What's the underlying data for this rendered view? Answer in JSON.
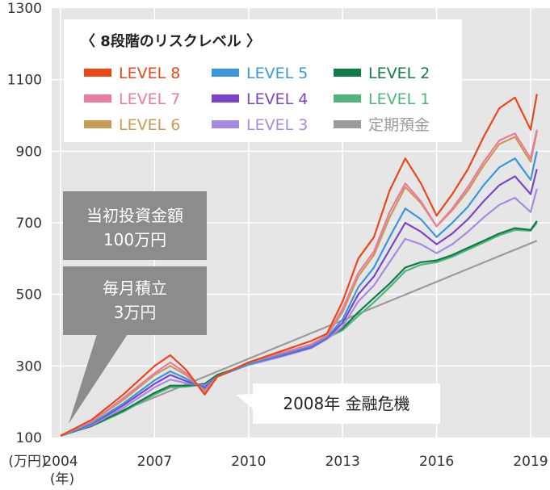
{
  "chart_data": {
    "type": "line",
    "xlabel": "(年)",
    "ylabel": "(万円)",
    "xlim": [
      2004,
      2019.5
    ],
    "ylim": [
      100,
      1300
    ],
    "x_ticks": [
      "2004",
      "2007",
      "2010",
      "2013",
      "2016",
      "2019"
    ],
    "y_ticks": [
      "100",
      "300",
      "500",
      "700",
      "900",
      "1100",
      "1300"
    ],
    "grid": true,
    "legend": {
      "title": "〈 8段階のリスクレベル 〉",
      "placement": "top-right"
    },
    "annotations": {
      "initial_investment": [
        "当初投資金額",
        "100万円"
      ],
      "monthly_investment": [
        "毎月積立",
        "3万円"
      ],
      "crisis": "2008年 金融危機"
    },
    "series": [
      {
        "name": "LEVEL 8",
        "color": "#e8471c",
        "x": [
          2004,
          2005,
          2006,
          2007,
          2007.5,
          2008,
          2008.6,
          2009,
          2010,
          2011,
          2012,
          2012.5,
          2013,
          2013.5,
          2014,
          2014.5,
          2015,
          2015.5,
          2016,
          2016.5,
          2017,
          2017.5,
          2018,
          2018.5,
          2019,
          2019.2
        ],
        "y": [
          105,
          150,
          220,
          300,
          330,
          290,
          220,
          270,
          310,
          340,
          370,
          390,
          480,
          600,
          660,
          790,
          880,
          810,
          720,
          780,
          850,
          940,
          1020,
          1050,
          960,
          1060
        ]
      },
      {
        "name": "LEVEL 7",
        "color": "#e97aa1",
        "x": [
          2004,
          2005,
          2006,
          2007,
          2007.5,
          2008,
          2008.6,
          2009,
          2010,
          2011,
          2012,
          2012.5,
          2013,
          2013.5,
          2014,
          2014.5,
          2015,
          2015.5,
          2016,
          2016.5,
          2017,
          2017.5,
          2018,
          2018.5,
          2019,
          2019.2
        ],
        "y": [
          105,
          145,
          210,
          280,
          310,
          280,
          225,
          270,
          310,
          335,
          360,
          385,
          460,
          560,
          620,
          730,
          810,
          760,
          690,
          740,
          800,
          870,
          930,
          950,
          880,
          960
        ]
      },
      {
        "name": "LEVEL 6",
        "color": "#c99a54",
        "x": [
          2004,
          2005,
          2006,
          2007,
          2007.5,
          2008,
          2008.6,
          2009,
          2010,
          2011,
          2012,
          2012.5,
          2013,
          2013.5,
          2014,
          2014.5,
          2015,
          2015.5,
          2016,
          2016.5,
          2017,
          2017.5,
          2018,
          2018.5,
          2019,
          2019.2
        ],
        "y": [
          105,
          145,
          205,
          275,
          300,
          275,
          230,
          270,
          310,
          335,
          360,
          385,
          450,
          550,
          610,
          715,
          800,
          755,
          690,
          735,
          790,
          860,
          920,
          940,
          870,
          955
        ]
      },
      {
        "name": "LEVEL 5",
        "color": "#3a97d9",
        "x": [
          2004,
          2005,
          2006,
          2007,
          2007.5,
          2008,
          2008.6,
          2009,
          2010,
          2011,
          2012,
          2012.5,
          2013,
          2013.5,
          2014,
          2014.5,
          2015,
          2015.5,
          2016,
          2016.5,
          2017,
          2017.5,
          2018,
          2018.5,
          2019,
          2019.2
        ],
        "y": [
          105,
          140,
          195,
          260,
          285,
          265,
          235,
          270,
          305,
          330,
          355,
          380,
          430,
          520,
          575,
          660,
          740,
          710,
          660,
          700,
          745,
          805,
          855,
          880,
          820,
          900
        ]
      },
      {
        "name": "LEVEL 4",
        "color": "#7b45c9",
        "x": [
          2004,
          2005,
          2006,
          2007,
          2007.5,
          2008,
          2008.6,
          2009,
          2010,
          2011,
          2012,
          2012.5,
          2013,
          2013.5,
          2014,
          2014.5,
          2015,
          2015.5,
          2016,
          2016.5,
          2017,
          2017.5,
          2018,
          2018.5,
          2019,
          2019.2
        ],
        "y": [
          105,
          138,
          190,
          250,
          275,
          258,
          240,
          270,
          305,
          328,
          352,
          378,
          420,
          500,
          550,
          625,
          700,
          675,
          640,
          670,
          710,
          760,
          805,
          830,
          780,
          850
        ]
      },
      {
        "name": "LEVEL 3",
        "color": "#a88ae0",
        "x": [
          2004,
          2005,
          2006,
          2007,
          2007.5,
          2008,
          2008.6,
          2009,
          2010,
          2011,
          2012,
          2012.5,
          2013,
          2013.5,
          2014,
          2014.5,
          2015,
          2015.5,
          2016,
          2016.5,
          2017,
          2017.5,
          2018,
          2018.5,
          2019,
          2019.2
        ],
        "y": [
          105,
          135,
          183,
          240,
          262,
          252,
          245,
          270,
          303,
          325,
          350,
          375,
          410,
          480,
          525,
          590,
          655,
          640,
          615,
          640,
          675,
          715,
          750,
          770,
          730,
          795
        ]
      },
      {
        "name": "LEVEL 2",
        "color": "#137a4a",
        "x": [
          2004,
          2005,
          2006,
          2007,
          2007.5,
          2008,
          2008.6,
          2009,
          2010,
          2011,
          2012,
          2012.5,
          2013,
          2013.5,
          2014,
          2014.5,
          2015,
          2015.5,
          2016,
          2016.5,
          2017,
          2017.5,
          2018,
          2018.5,
          2019,
          2019.2
        ],
        "y": [
          105,
          133,
          175,
          225,
          245,
          245,
          250,
          275,
          305,
          330,
          355,
          380,
          405,
          450,
          490,
          530,
          575,
          590,
          595,
          610,
          630,
          650,
          670,
          685,
          680,
          705
        ]
      },
      {
        "name": "LEVEL 1",
        "color": "#52b47a",
        "x": [
          2004,
          2005,
          2006,
          2007,
          2007.5,
          2008,
          2008.6,
          2009,
          2010,
          2011,
          2012,
          2012.5,
          2013,
          2013.5,
          2014,
          2014.5,
          2015,
          2015.5,
          2016,
          2016.5,
          2017,
          2017.5,
          2018,
          2018.5,
          2019,
          2019.2
        ],
        "y": [
          105,
          132,
          172,
          220,
          240,
          242,
          248,
          273,
          303,
          328,
          352,
          378,
          400,
          440,
          478,
          520,
          565,
          583,
          590,
          605,
          625,
          645,
          665,
          680,
          678,
          700
        ]
      },
      {
        "name": "定期預金",
        "color": "#9b9b9b",
        "x": [
          2004,
          2019.2
        ],
        "y": [
          105,
          650
        ]
      }
    ]
  }
}
